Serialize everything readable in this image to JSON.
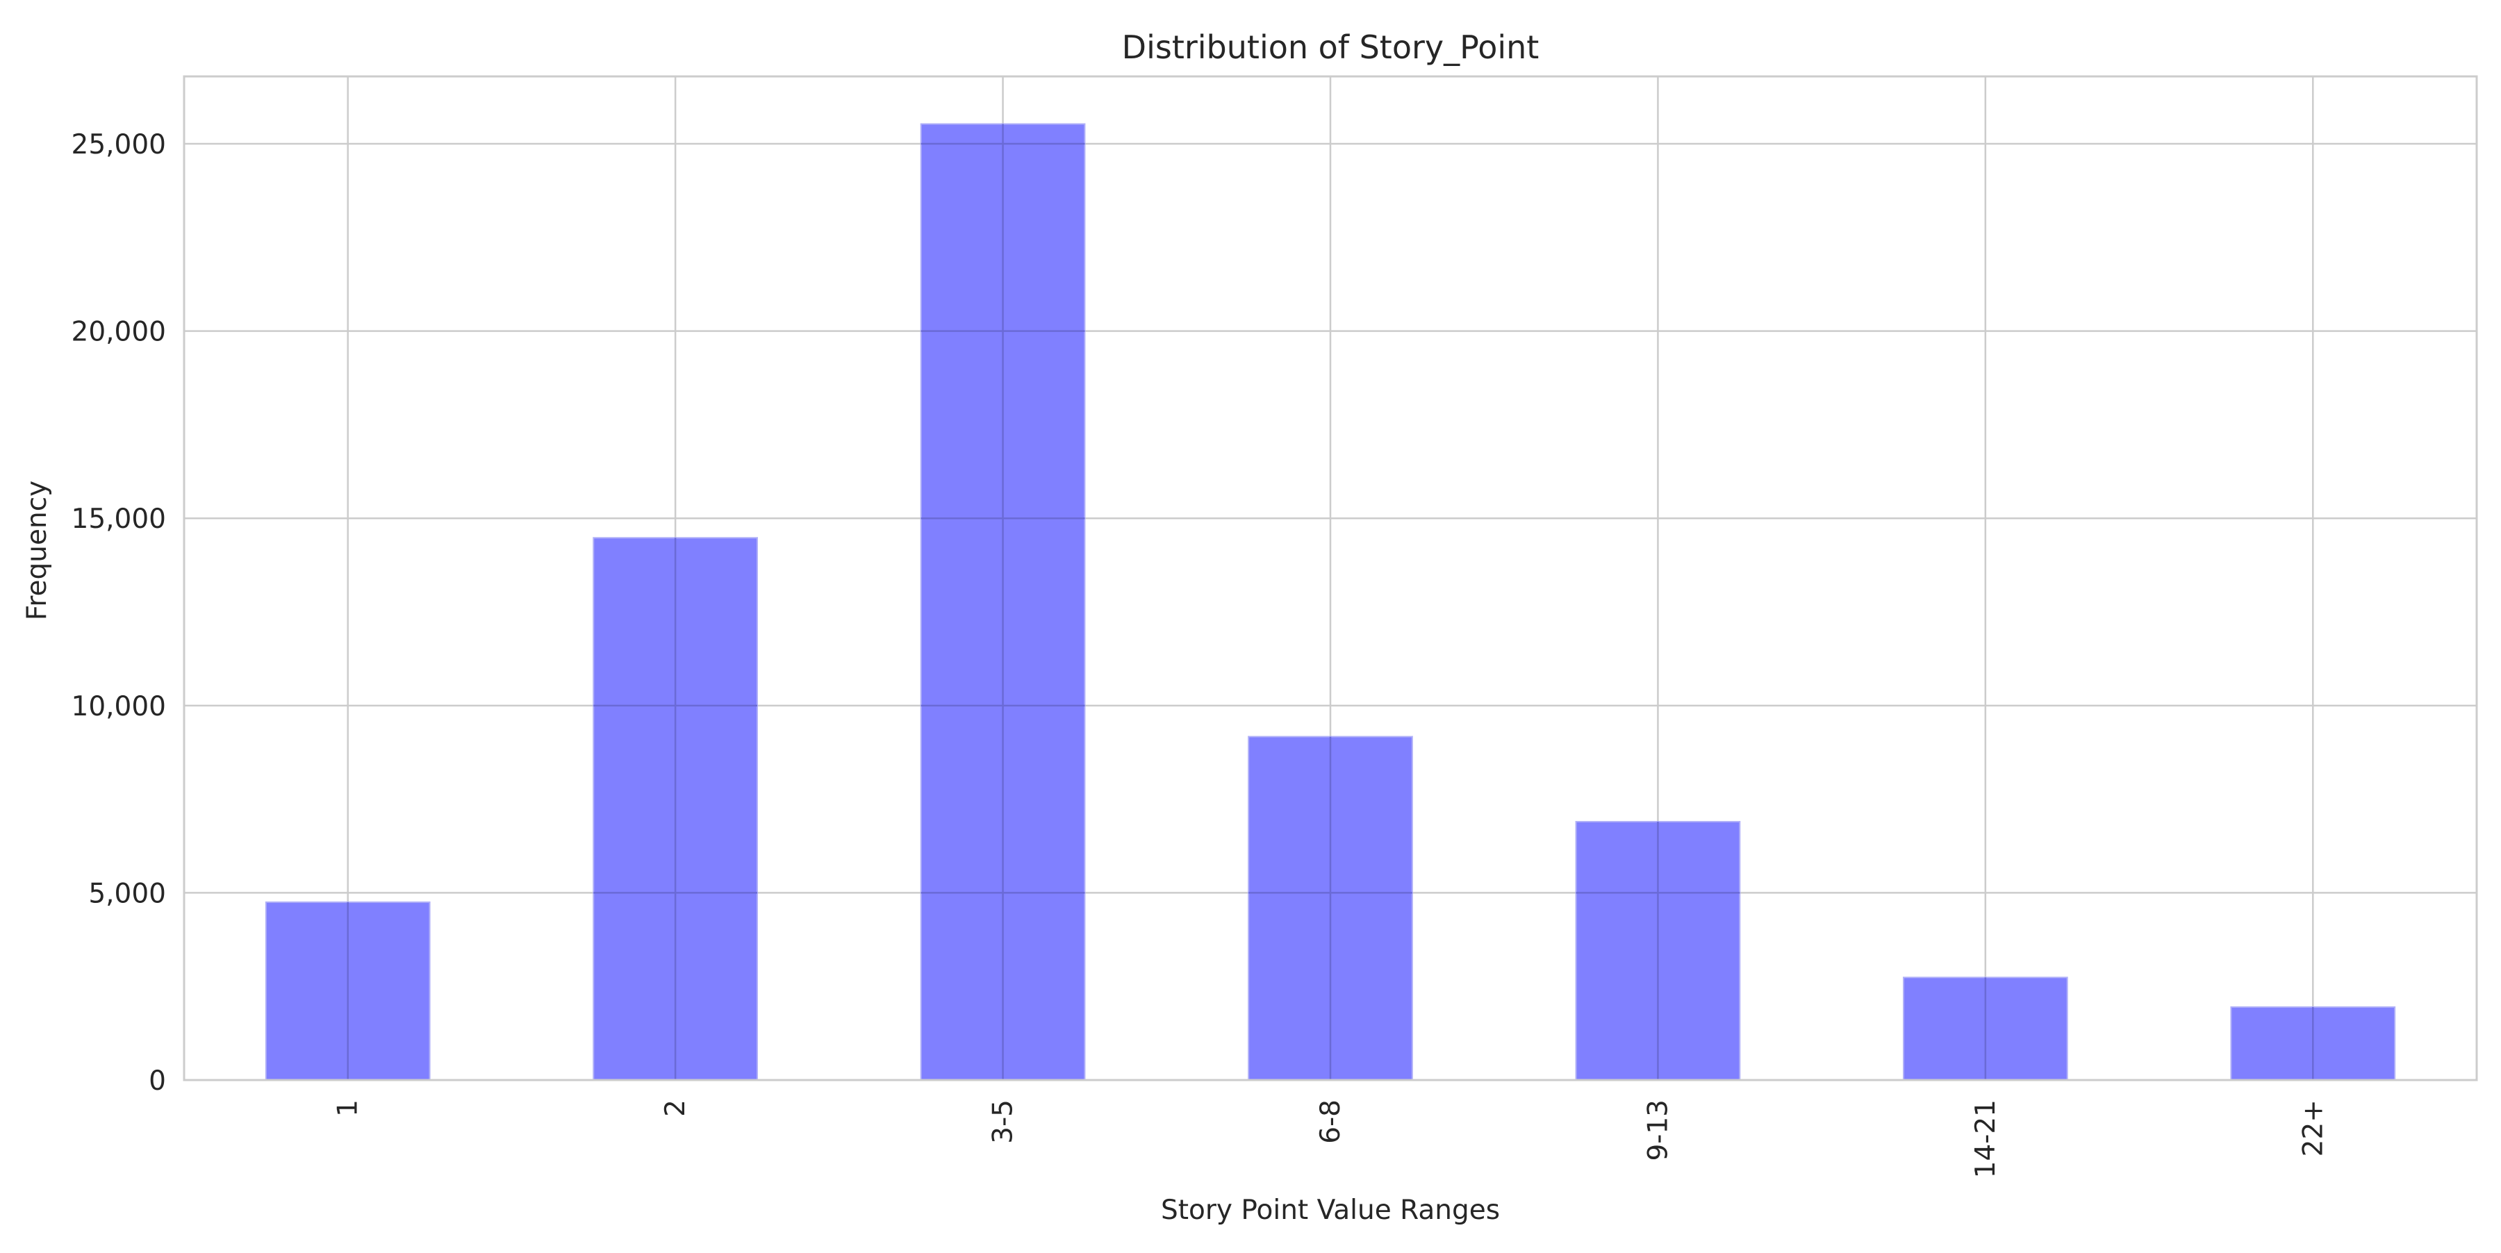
{
  "chart_data": {
    "type": "bar",
    "title": "Distribution of Story_Point",
    "xlabel": "Story Point Value Ranges",
    "ylabel": "Frequency",
    "categories": [
      "1",
      "2",
      "3-5",
      "6-8",
      "9-13",
      "14-21",
      "22+"
    ],
    "values": [
      4750,
      14480,
      25530,
      9170,
      6900,
      2740,
      1950
    ],
    "ylim": [
      0,
      26800
    ],
    "yticks": [
      0,
      5000,
      10000,
      15000,
      20000,
      25000
    ],
    "ytick_labels": [
      "0",
      "5,000",
      "10,000",
      "15,000",
      "20,000",
      "25,000"
    ],
    "bar_color": "#8080ff",
    "bar_edge_color": "#b0b0f8",
    "grid": true,
    "legend": false
  }
}
